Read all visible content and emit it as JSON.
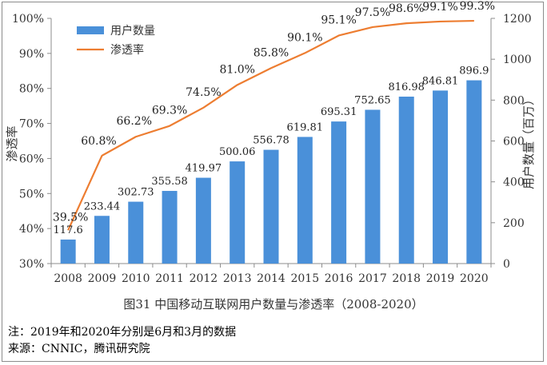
{
  "caption": "图31   中国移动互联网用户数量与渗透率（2008-2020）",
  "notes": {
    "note": "注：2019年和2020年分别是6月和3月的数据",
    "source": "来源：CNNIC，腾讯研究院"
  },
  "colors": {
    "bar": "#4a90d9",
    "line": "#ed7d31",
    "axis": "#8c8c8c"
  },
  "chart_data": {
    "type": "bar+line",
    "categories": [
      "2008",
      "2009",
      "2010",
      "2011",
      "2012",
      "2013",
      "2014",
      "2015",
      "2016",
      "2017",
      "2018",
      "2019",
      "2020"
    ],
    "series": [
      {
        "name": "用户数量",
        "type": "bar",
        "axis": "right",
        "values": [
          117.6,
          233.44,
          302.73,
          355.58,
          419.97,
          500.06,
          556.78,
          619.81,
          695.31,
          752.65,
          816.98,
          846.81,
          896.9
        ],
        "labels": [
          "117.6",
          "233.44",
          "302.73",
          "355.58",
          "419.97",
          "500.06",
          "556.78",
          "619.81",
          "695.31",
          "752.65",
          "816.98",
          "846.81",
          "896.9"
        ]
      },
      {
        "name": "渗透率",
        "type": "line",
        "axis": "left",
        "values": [
          39.5,
          60.8,
          66.2,
          69.3,
          74.5,
          81.0,
          85.8,
          90.1,
          95.1,
          97.5,
          98.6,
          99.1,
          99.3
        ],
        "labels": [
          "39.5%",
          "60.8%",
          "66.2%",
          "69.3%",
          "74.5%",
          "81.0%",
          "85.8%",
          "90.1%",
          "95.1%",
          "97.5%",
          "98.6%",
          "99.1%",
          "99.3%"
        ]
      }
    ],
    "y_left": {
      "label": "渗透率",
      "range": [
        30,
        100
      ],
      "ticks": [
        "30%",
        "40%",
        "50%",
        "60%",
        "70%",
        "80%",
        "90%",
        "100%"
      ]
    },
    "y_right": {
      "label": "用户数量（百万）",
      "range": [
        0,
        1200
      ],
      "ticks": [
        "0",
        "200",
        "400",
        "600",
        "800",
        "1000",
        "1200"
      ]
    },
    "grid": false,
    "legend": "top-left"
  }
}
